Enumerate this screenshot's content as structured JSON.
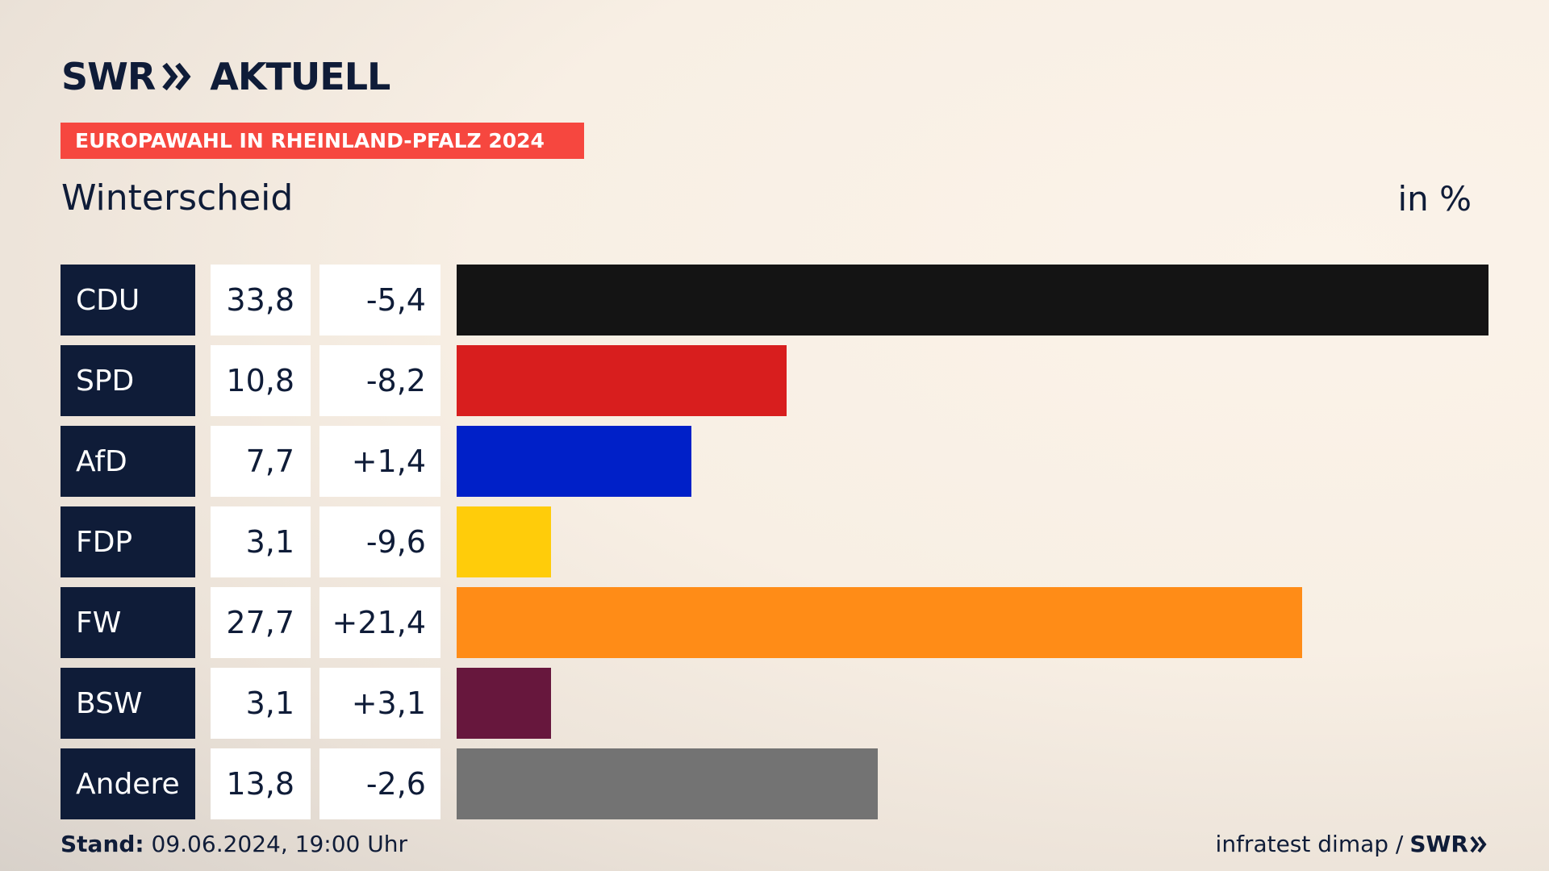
{
  "header": {
    "logo_swr": "SWR",
    "logo_aktuell": "AKTUELL",
    "banner": "EUROPAWAHL IN RHEINLAND-PFALZ 2024",
    "region": "Winterscheid",
    "unit": "in %"
  },
  "footer": {
    "stand_label": "Stand:",
    "stand_value": "09.06.2024, 19:00 Uhr",
    "source": "infratest dimap /",
    "brand": "SWR"
  },
  "chart_data": {
    "type": "bar",
    "categories": [
      "CDU",
      "SPD",
      "AfD",
      "FDP",
      "FW",
      "BSW",
      "Andere"
    ],
    "values": [
      33.8,
      10.8,
      7.7,
      3.1,
      27.7,
      3.1,
      13.8
    ],
    "value_labels": [
      "33,8",
      "10,8",
      "7,7",
      "3,1",
      "27,7",
      "3,1",
      "13,8"
    ],
    "diff_labels": [
      "-5,4",
      "-8,2",
      "+1,4",
      "-9,6",
      "+21,4",
      "+3,1",
      "-2,6"
    ],
    "colors": [
      "#141414",
      "#d81e1e",
      "#0020c8",
      "#ffcc0a",
      "#ff8c17",
      "#67173d",
      "#737373"
    ],
    "xlim": [
      0,
      33.8
    ]
  }
}
